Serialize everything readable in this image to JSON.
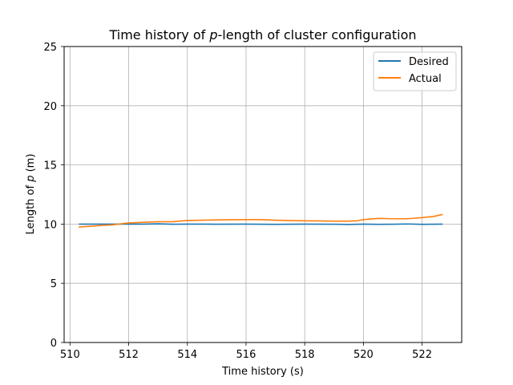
{
  "chart_data": {
    "type": "line",
    "title_prefix": "Time history of ",
    "title_var": "p",
    "title_suffix": "-length of cluster configuration",
    "xlabel": "Time history (s)",
    "ylabel_prefix": "Length of ",
    "ylabel_var": "p",
    "ylabel_suffix": " (m)",
    "xlim": [
      509.8,
      523.35
    ],
    "ylim": [
      0,
      25
    ],
    "xticks": [
      510,
      512,
      514,
      516,
      518,
      520,
      522
    ],
    "yticks": [
      0,
      5,
      10,
      15,
      20,
      25
    ],
    "grid": true,
    "legend_position": "top-right",
    "series": [
      {
        "name": "Desired",
        "color": "#1f77b4",
        "x": [
          510.3,
          511.0,
          512.0,
          512.5,
          513.0,
          513.5,
          514.0,
          515.0,
          516.0,
          517.0,
          518.0,
          519.0,
          519.5,
          520.0,
          520.5,
          521.0,
          521.5,
          522.0,
          522.7
        ],
        "y": [
          10.0,
          10.0,
          10.0,
          10.0,
          10.02,
          9.99,
          10.0,
          9.99,
          10.0,
          9.98,
          10.0,
          9.99,
          9.97,
          10.0,
          9.98,
          9.99,
          10.01,
          9.98,
          10.0
        ]
      },
      {
        "name": "Actual",
        "color": "#ff7f0e",
        "x": [
          510.3,
          510.6,
          511.0,
          511.5,
          512.0,
          512.5,
          513.0,
          513.5,
          513.7,
          514.0,
          514.5,
          515.0,
          515.5,
          516.0,
          516.5,
          517.0,
          517.5,
          518.0,
          518.5,
          519.0,
          519.5,
          519.8,
          520.0,
          520.5,
          521.0,
          521.5,
          522.0,
          522.4,
          522.7
        ],
        "y": [
          9.75,
          9.8,
          9.87,
          9.95,
          10.1,
          10.15,
          10.2,
          10.2,
          10.25,
          10.3,
          10.33,
          10.35,
          10.37,
          10.38,
          10.38,
          10.33,
          10.3,
          10.28,
          10.27,
          10.25,
          10.25,
          10.28,
          10.38,
          10.48,
          10.45,
          10.45,
          10.55,
          10.65,
          10.82
        ]
      }
    ]
  }
}
